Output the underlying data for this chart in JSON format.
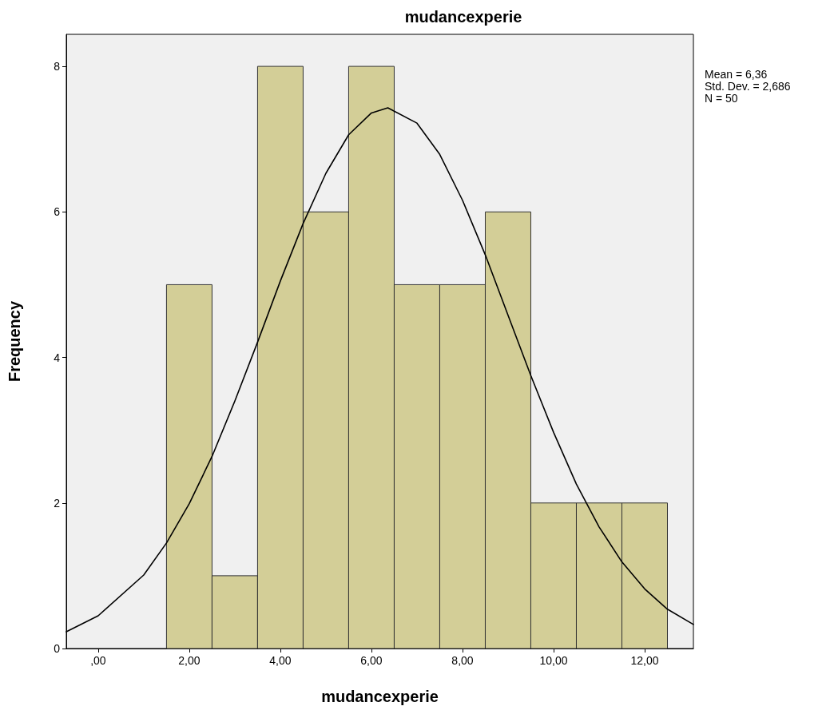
{
  "chart_data": {
    "type": "histogram",
    "title": "mudancexperie",
    "xlabel": "mudancexperie",
    "ylabel": "Frequency",
    "bins": [
      1.5,
      2.5,
      3.5,
      4.5,
      5.5,
      6.5,
      7.5,
      8.5,
      9.5,
      10.5,
      11.5,
      12.5
    ],
    "series": [
      {
        "color": "#d3ce97",
        "values": [
          5,
          1,
          8,
          6,
          8,
          5,
          5,
          6,
          2,
          2,
          2
        ]
      },
      {
        "type": "line",
        "color": "#000000",
        "x": [
          -0.7,
          0,
          1,
          1.5,
          2,
          2.5,
          3,
          3.5,
          4,
          4.5,
          5,
          5.5,
          6,
          6.36,
          7,
          7.5,
          8,
          8.5,
          9,
          9.5,
          10,
          10.5,
          11,
          11.5,
          12,
          12.5,
          13.07
        ],
        "values": [
          0.23,
          0.45,
          1.01,
          1.45,
          1.99,
          2.64,
          3.4,
          4.21,
          5.05,
          5.84,
          6.53,
          7.06,
          7.36,
          7.43,
          7.22,
          6.79,
          6.16,
          5.41,
          4.58,
          3.75,
          2.97,
          2.26,
          1.67,
          1.19,
          0.82,
          0.54,
          0.33
        ]
      }
    ],
    "xlim": [
      -0.7,
      13.07
    ],
    "xticks": [
      {
        "value": 0,
        "label": ",00"
      },
      {
        "value": 2,
        "label": "2,00"
      },
      {
        "value": 4,
        "label": "4,00"
      },
      {
        "value": 6,
        "label": "6,00"
      },
      {
        "value": 8,
        "label": "8,00"
      },
      {
        "value": 10,
        "label": "10,00"
      },
      {
        "value": 12,
        "label": "12,00"
      }
    ],
    "ylim": [
      0,
      8.44
    ],
    "yticks": [
      0,
      2,
      4,
      6,
      8
    ],
    "grid": false,
    "marker": "none",
    "line_style": "solid",
    "annotations": [
      "Mean = 6,36",
      "Std. Dev. = 2,686",
      "N = 50"
    ]
  }
}
